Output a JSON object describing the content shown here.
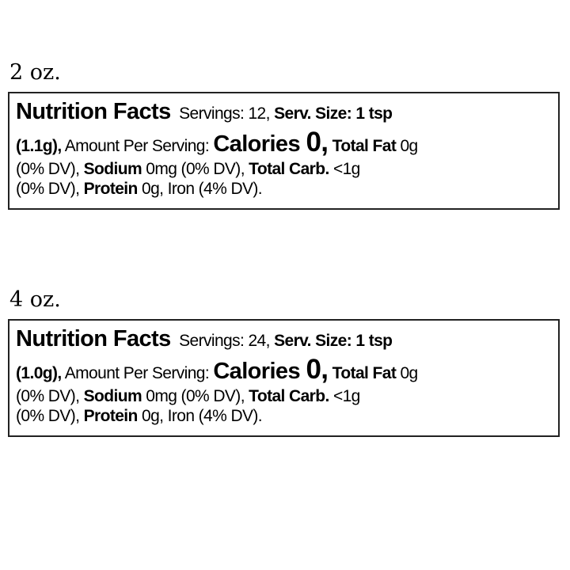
{
  "labels": [
    {
      "size": "2 oz.",
      "lines": [
        [
          {
            "t": "Nutrition Facts",
            "s": "big"
          },
          {
            "t": "  Servings: 12, ",
            "s": ""
          },
          {
            "t": "Serv. Size: 1 tsp",
            "s": "b"
          }
        ],
        [
          {
            "t": "(1.1g),",
            "s": "b"
          },
          {
            "t": " Amount Per Serving: ",
            "s": ""
          },
          {
            "t": "Calories ",
            "s": "big"
          },
          {
            "t": "0,",
            "s": "huge"
          },
          {
            "t": " Total Fat",
            "s": "b"
          },
          {
            "t": " 0g",
            "s": ""
          }
        ],
        [
          {
            "t": "(0% DV), ",
            "s": ""
          },
          {
            "t": "Sodium",
            "s": "b"
          },
          {
            "t": " 0mg (0% DV), ",
            "s": ""
          },
          {
            "t": "Total Carb.",
            "s": "b"
          },
          {
            "t": " <1g",
            "s": ""
          }
        ],
        [
          {
            "t": "(0% DV), ",
            "s": ""
          },
          {
            "t": "Protein",
            "s": "b"
          },
          {
            "t": " 0g, Iron (4% DV).",
            "s": ""
          }
        ]
      ]
    },
    {
      "size": "4 oz.",
      "lines": [
        [
          {
            "t": "Nutrition Facts",
            "s": "big"
          },
          {
            "t": "  Servings: 24, ",
            "s": ""
          },
          {
            "t": "Serv. Size: 1 tsp",
            "s": "b"
          }
        ],
        [
          {
            "t": "(1.0g),",
            "s": "b"
          },
          {
            "t": " Amount Per Serving: ",
            "s": ""
          },
          {
            "t": "Calories ",
            "s": "big"
          },
          {
            "t": "0,",
            "s": "huge"
          },
          {
            "t": " Total Fat",
            "s": "b"
          },
          {
            "t": " 0g",
            "s": ""
          }
        ],
        [
          {
            "t": "(0% DV), ",
            "s": ""
          },
          {
            "t": "Sodium",
            "s": "b"
          },
          {
            "t": " 0mg (0% DV), ",
            "s": ""
          },
          {
            "t": "Total Carb.",
            "s": "b"
          },
          {
            "t": " <1g",
            "s": ""
          }
        ],
        [
          {
            "t": "(0% DV), ",
            "s": ""
          },
          {
            "t": "Protein",
            "s": "b"
          },
          {
            "t": " 0g, Iron (4% DV).",
            "s": ""
          }
        ]
      ]
    }
  ]
}
